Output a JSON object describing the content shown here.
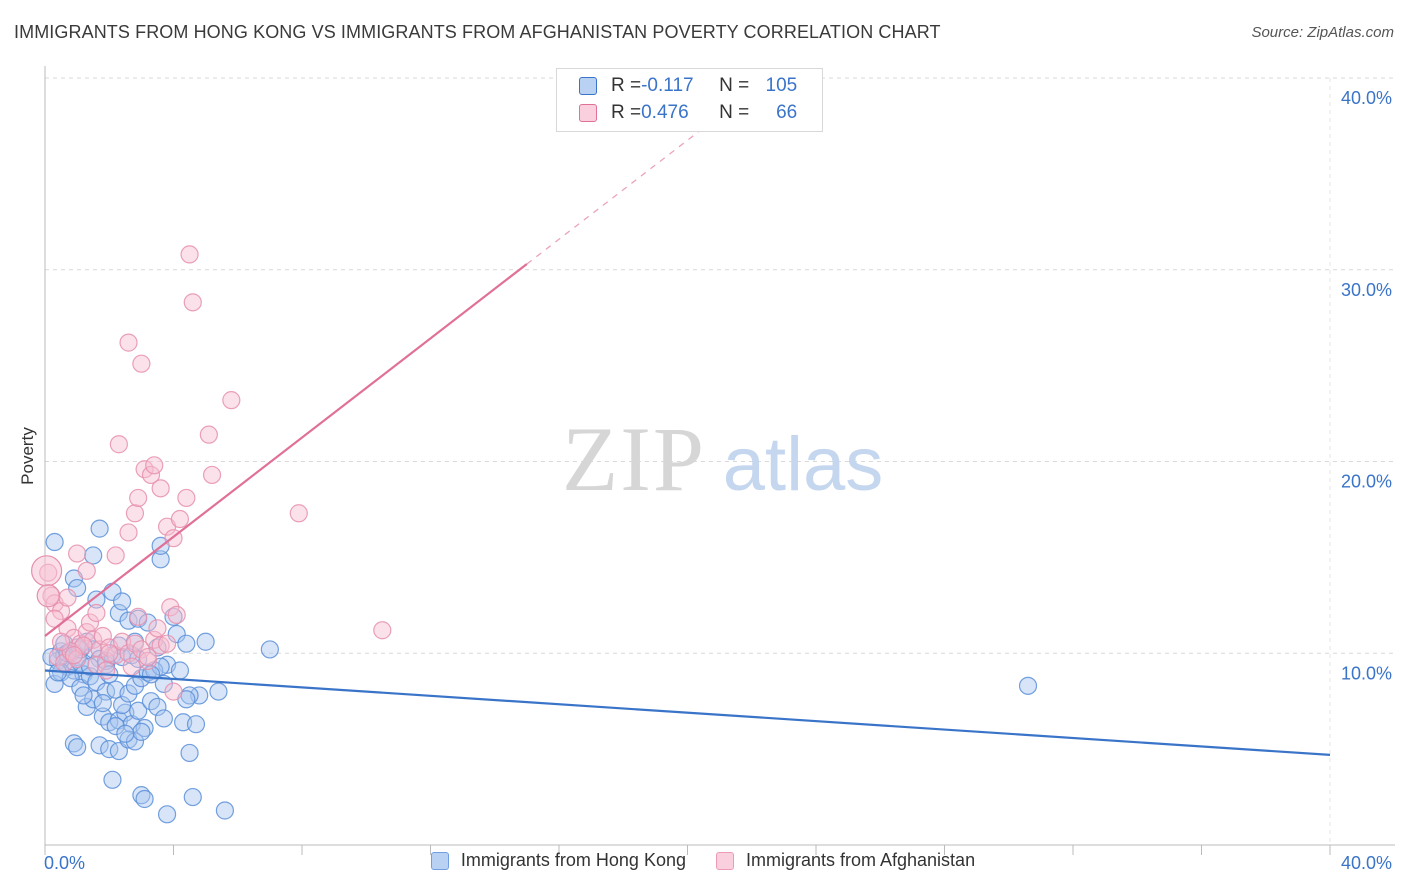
{
  "title": "IMMIGRANTS FROM HONG KONG VS IMMIGRANTS FROM AFGHANISTAN POVERTY CORRELATION CHART",
  "source": "Source: ZipAtlas.com",
  "watermark": {
    "zip": "ZIP",
    "atlas": "atlas"
  },
  "colors": {
    "blue": "#3a74c9",
    "pink": "#e07098",
    "blue_fill": "#a9c6f0",
    "pink_fill": "#f7bfd1"
  },
  "stats": {
    "rows": [
      {
        "r_label": "R = ",
        "r_value": "-0.117",
        "n_label": "N = ",
        "n_value": "105"
      },
      {
        "r_label": "R = ",
        "r_value": "0.476",
        "n_label": "N = ",
        "n_value": "66"
      }
    ]
  },
  "legend": {
    "series1": "Immigrants from Hong Kong",
    "series2": "Immigrants from Afghanistan"
  },
  "chart_data": {
    "type": "scatter",
    "xlabel": "",
    "ylabel": "Poverty",
    "xlim": [
      0,
      40
    ],
    "ylim": [
      0,
      40
    ],
    "x_tick_labels": [
      "0.0%",
      "40.0%"
    ],
    "y_tick_labels": [
      "10.0%",
      "20.0%",
      "30.0%",
      "40.0%"
    ],
    "y_ticks": [
      10,
      20,
      30,
      40
    ],
    "x_minor_ticks": [
      0,
      4,
      8,
      12,
      16,
      20,
      24,
      28,
      32,
      36,
      40
    ],
    "series": [
      {
        "name": "Immigrants from Hong Kong",
        "color": "#3a74c9",
        "trend": {
          "x0": 0,
          "y0": 9.1,
          "x1": 40,
          "y1": 4.7
        },
        "points": [
          [
            0.3,
            15.8
          ],
          [
            0.5,
            10.1
          ],
          [
            0.4,
            9.6
          ],
          [
            0.6,
            9.9
          ],
          [
            0.7,
            9.3
          ],
          [
            0.8,
            10.0
          ],
          [
            0.9,
            9.1
          ],
          [
            1.0,
            9.8
          ],
          [
            1.1,
            9.5
          ],
          [
            1.2,
            8.9
          ],
          [
            0.3,
            8.4
          ],
          [
            0.5,
            9.0
          ],
          [
            0.8,
            8.7
          ],
          [
            1.0,
            10.3
          ],
          [
            1.3,
            10.6
          ],
          [
            1.5,
            10.2
          ],
          [
            1.7,
            9.7
          ],
          [
            1.9,
            9.4
          ],
          [
            2.1,
            9.9
          ],
          [
            2.3,
            10.4
          ],
          [
            0.9,
            13.9
          ],
          [
            1.0,
            13.4
          ],
          [
            1.5,
            15.1
          ],
          [
            1.7,
            16.5
          ],
          [
            2.1,
            13.2
          ],
          [
            2.3,
            12.1
          ],
          [
            2.4,
            12.7
          ],
          [
            2.6,
            11.7
          ],
          [
            2.9,
            11.8
          ],
          [
            3.2,
            11.6
          ],
          [
            3.5,
            10.3
          ],
          [
            3.8,
            9.4
          ],
          [
            4.0,
            11.9
          ],
          [
            4.1,
            11.0
          ],
          [
            4.4,
            10.5
          ],
          [
            1.1,
            8.2
          ],
          [
            1.3,
            7.2
          ],
          [
            1.5,
            7.6
          ],
          [
            1.8,
            6.7
          ],
          [
            2.0,
            6.4
          ],
          [
            2.3,
            6.5
          ],
          [
            2.5,
            6.9
          ],
          [
            2.7,
            6.3
          ],
          [
            2.9,
            7.0
          ],
          [
            3.1,
            6.1
          ],
          [
            3.3,
            7.5
          ],
          [
            3.5,
            7.2
          ],
          [
            3.7,
            6.6
          ],
          [
            1.4,
            8.8
          ],
          [
            1.6,
            8.5
          ],
          [
            1.9,
            8.0
          ],
          [
            2.2,
            8.1
          ],
          [
            2.4,
            7.3
          ],
          [
            2.6,
            7.9
          ],
          [
            2.8,
            8.3
          ],
          [
            3.0,
            8.7
          ],
          [
            3.2,
            9.0
          ],
          [
            3.4,
            9.1
          ],
          [
            3.6,
            9.3
          ],
          [
            0.9,
            5.3
          ],
          [
            1.0,
            5.1
          ],
          [
            1.7,
            5.2
          ],
          [
            2.0,
            5.0
          ],
          [
            2.3,
            4.9
          ],
          [
            2.6,
            5.5
          ],
          [
            2.8,
            5.4
          ],
          [
            3.0,
            5.9
          ],
          [
            4.3,
            6.4
          ],
          [
            4.7,
            6.3
          ],
          [
            4.5,
            4.8
          ],
          [
            4.6,
            2.5
          ],
          [
            2.1,
            3.4
          ],
          [
            3.0,
            2.6
          ],
          [
            3.1,
            2.4
          ],
          [
            3.8,
            1.6
          ],
          [
            5.6,
            1.8
          ],
          [
            4.8,
            7.8
          ],
          [
            4.5,
            7.8
          ],
          [
            5.4,
            8.0
          ],
          [
            5.0,
            10.6
          ],
          [
            4.2,
            9.1
          ],
          [
            3.6,
            14.9
          ],
          [
            3.6,
            15.6
          ],
          [
            1.9,
            9.6
          ],
          [
            2.4,
            9.8
          ],
          [
            2.7,
            9.9
          ],
          [
            1.1,
            10.2
          ],
          [
            0.6,
            10.5
          ],
          [
            0.4,
            9.0
          ],
          [
            0.2,
            9.8
          ],
          [
            7.0,
            10.2
          ],
          [
            30.6,
            8.3
          ],
          [
            1.6,
            12.8
          ],
          [
            2.0,
            8.9
          ],
          [
            2.9,
            9.7
          ],
          [
            3.7,
            8.4
          ],
          [
            4.4,
            7.6
          ],
          [
            1.2,
            7.8
          ],
          [
            1.8,
            7.4
          ],
          [
            2.2,
            6.2
          ],
          [
            2.5,
            5.8
          ],
          [
            3.3,
            8.9
          ],
          [
            0.7,
            10.0
          ],
          [
            1.4,
            9.3
          ],
          [
            2.8,
            10.6
          ]
        ]
      },
      {
        "name": "Immigrants from Afghanistan",
        "color": "#e07098",
        "trend": {
          "x0": 0,
          "y0": 10.9,
          "x1": 15.0,
          "y1": 30.3,
          "x_dash_end": 20.5,
          "y_dash_end": 37.4
        },
        "points": [
          [
            0.1,
            14.2
          ],
          [
            0.2,
            13.0
          ],
          [
            0.3,
            12.6
          ],
          [
            0.5,
            12.2
          ],
          [
            0.7,
            11.3
          ],
          [
            0.9,
            10.8
          ],
          [
            1.1,
            10.5
          ],
          [
            1.3,
            11.1
          ],
          [
            1.5,
            10.7
          ],
          [
            1.7,
            10.2
          ],
          [
            0.4,
            9.8
          ],
          [
            0.6,
            9.5
          ],
          [
            0.8,
            10.1
          ],
          [
            1.0,
            9.7
          ],
          [
            1.2,
            10.4
          ],
          [
            1.4,
            11.6
          ],
          [
            1.6,
            12.1
          ],
          [
            1.8,
            10.9
          ],
          [
            2.0,
            10.3
          ],
          [
            2.2,
            9.9
          ],
          [
            2.4,
            10.6
          ],
          [
            2.6,
            10.0
          ],
          [
            2.8,
            10.5
          ],
          [
            3.0,
            10.2
          ],
          [
            3.2,
            9.6
          ],
          [
            3.4,
            10.7
          ],
          [
            3.6,
            10.4
          ],
          [
            1.0,
            15.2
          ],
          [
            1.3,
            14.3
          ],
          [
            2.2,
            15.1
          ],
          [
            2.6,
            16.3
          ],
          [
            2.8,
            17.3
          ],
          [
            2.9,
            18.1
          ],
          [
            3.1,
            19.6
          ],
          [
            3.3,
            19.3
          ],
          [
            3.4,
            19.8
          ],
          [
            3.6,
            18.6
          ],
          [
            3.8,
            16.6
          ],
          [
            4.0,
            16.0
          ],
          [
            4.2,
            17.0
          ],
          [
            4.4,
            18.1
          ],
          [
            5.2,
            19.3
          ],
          [
            5.1,
            21.4
          ],
          [
            5.8,
            23.2
          ],
          [
            4.6,
            28.3
          ],
          [
            4.5,
            30.8
          ],
          [
            2.6,
            26.2
          ],
          [
            3.0,
            25.1
          ],
          [
            2.3,
            20.9
          ],
          [
            7.9,
            17.3
          ],
          [
            10.5,
            11.2
          ],
          [
            3.8,
            10.5
          ],
          [
            4.0,
            8.0
          ],
          [
            3.2,
            9.8
          ],
          [
            3.9,
            12.4
          ],
          [
            4.1,
            12.0
          ],
          [
            2.9,
            11.9
          ],
          [
            2.0,
            10.0
          ],
          [
            1.6,
            9.4
          ],
          [
            0.3,
            11.8
          ],
          [
            0.5,
            10.6
          ],
          [
            0.7,
            12.9
          ],
          [
            1.9,
            9.1
          ],
          [
            2.7,
            9.3
          ],
          [
            3.5,
            11.3
          ],
          [
            0.9,
            9.9
          ]
        ]
      }
    ]
  }
}
